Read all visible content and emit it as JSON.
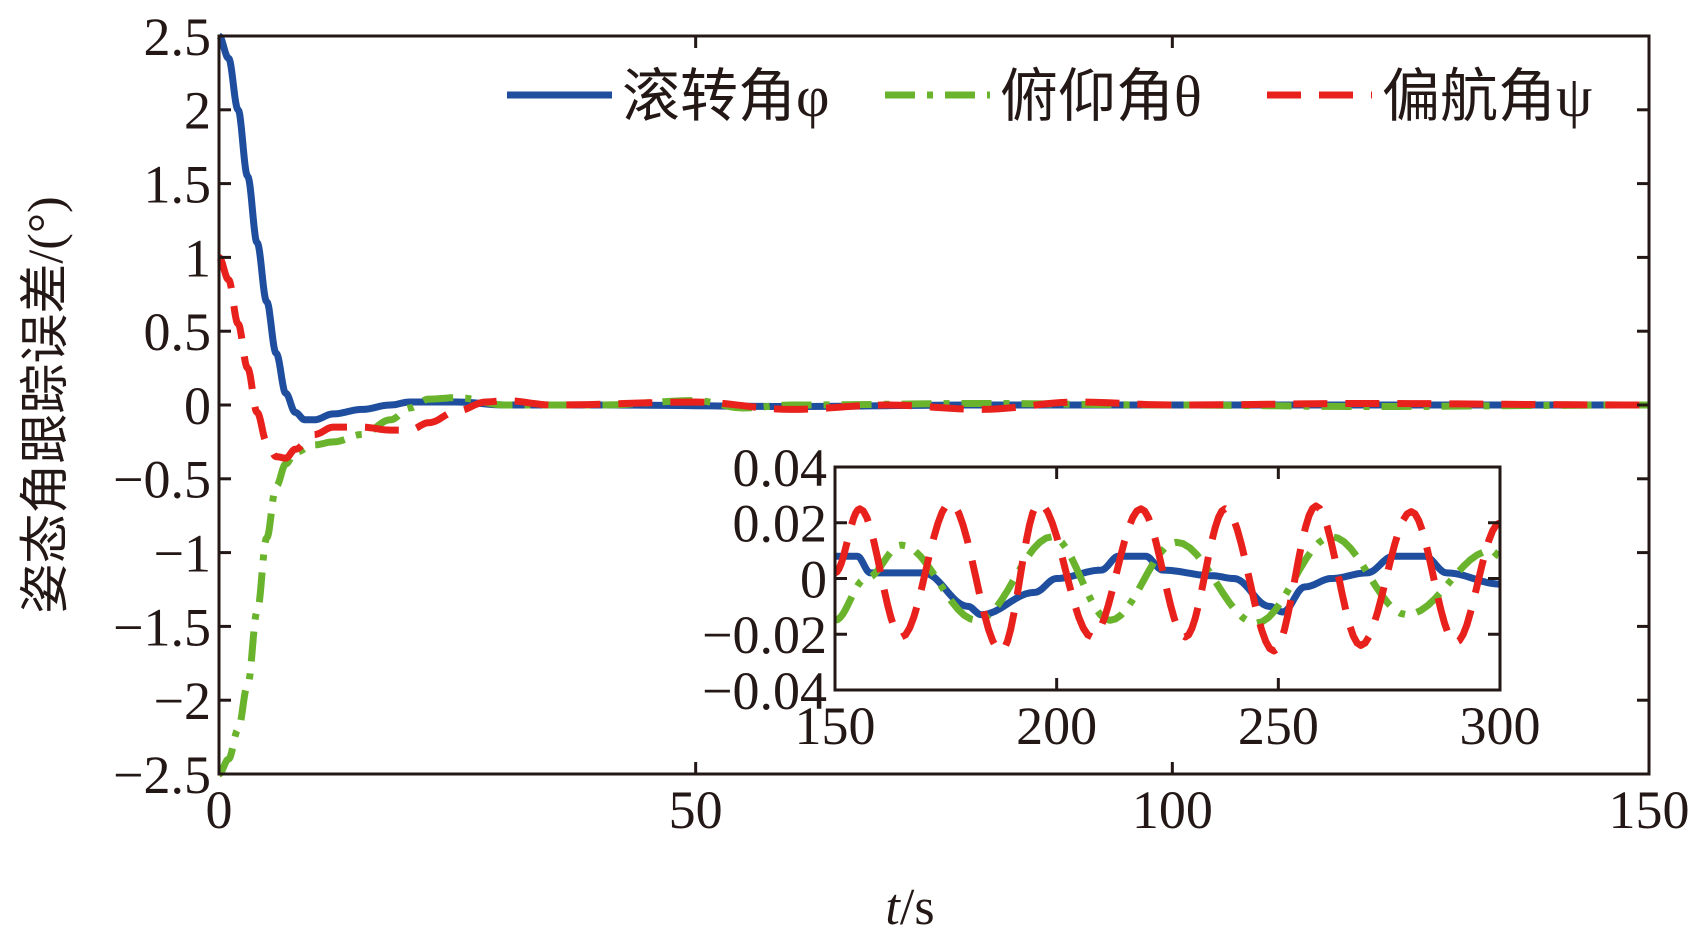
{
  "chart_data": [
    {
      "type": "line",
      "title": "",
      "xlabel_italic": "t",
      "xlabel_unit": "/s",
      "ylabel": "姿态角跟踪误差/(°)",
      "xlim": [
        0,
        150
      ],
      "ylim": [
        -2.5,
        2.5
      ],
      "xticks": [
        "0",
        "50",
        "100",
        "150"
      ],
      "xtick_values": [
        0,
        50,
        100,
        150
      ],
      "yticks": [
        "−2.5",
        "−2",
        "−1.5",
        "−1",
        "−0.5",
        "0",
        "0.5",
        "1",
        "1.5",
        "2",
        "2.5"
      ],
      "ytick_values": [
        -2.5,
        -2,
        -1.5,
        -1,
        -0.5,
        0,
        0.5,
        1,
        1.5,
        2,
        2.5
      ],
      "legend_placement": "top-right",
      "series": [
        {
          "name": "滚转角φ",
          "color": "#1f4e9e",
          "style": "solid",
          "x": [
            0,
            1,
            2,
            3,
            4,
            5,
            6,
            7,
            8,
            9,
            10,
            12,
            15,
            18,
            20,
            25,
            30,
            40,
            60,
            80,
            100,
            120,
            150
          ],
          "y": [
            2.5,
            2.35,
            2.0,
            1.55,
            1.1,
            0.7,
            0.35,
            0.08,
            -0.05,
            -0.1,
            -0.1,
            -0.06,
            -0.03,
            0.0,
            0.02,
            0.02,
            0.0,
            0.0,
            -0.01,
            0.0,
            0.0,
            0.0,
            0.0
          ]
        },
        {
          "name": "俯仰角θ",
          "color": "#6ab42d",
          "style": "dashdot",
          "x": [
            0,
            1,
            2,
            3,
            4,
            5,
            6,
            7,
            8,
            10,
            12,
            15,
            18,
            20,
            22,
            25,
            30,
            40,
            50,
            55,
            60,
            80,
            100,
            120,
            150
          ],
          "y": [
            -2.5,
            -2.4,
            -2.2,
            -1.9,
            -1.4,
            -0.9,
            -0.55,
            -0.4,
            -0.32,
            -0.27,
            -0.25,
            -0.2,
            -0.1,
            -0.02,
            0.04,
            0.05,
            0.0,
            0.0,
            0.03,
            -0.02,
            0.0,
            0.01,
            0.0,
            -0.01,
            0.0
          ]
        },
        {
          "name": "偏航角ψ",
          "color": "#e8211c",
          "style": "dashed",
          "x": [
            0,
            1,
            2,
            3,
            4,
            5,
            6,
            7,
            8,
            10,
            12,
            15,
            18,
            20,
            22,
            25,
            28,
            30,
            35,
            50,
            60,
            70,
            80,
            90,
            100,
            120,
            150
          ],
          "y": [
            1.0,
            0.85,
            0.55,
            0.25,
            -0.05,
            -0.25,
            -0.35,
            -0.36,
            -0.3,
            -0.2,
            -0.15,
            -0.15,
            -0.17,
            -0.17,
            -0.12,
            -0.04,
            0.02,
            0.03,
            0.0,
            0.02,
            -0.03,
            0.0,
            -0.03,
            0.02,
            0.0,
            0.01,
            0.0
          ]
        }
      ]
    },
    {
      "type": "line",
      "inset": true,
      "xlim": [
        150,
        300
      ],
      "ylim": [
        -0.04,
        0.04
      ],
      "xticks": [
        "150",
        "200",
        "250",
        "300"
      ],
      "xtick_values": [
        150,
        200,
        250,
        300
      ],
      "yticks": [
        "−0.04",
        "−0.02",
        "0",
        "0.02",
        "0.04"
      ],
      "ytick_values": [
        -0.04,
        -0.02,
        0,
        0.02,
        0.04
      ],
      "series": [
        {
          "name": "滚转角φ",
          "color": "#1f4e9e",
          "style": "solid",
          "x": [
            150,
            155,
            158,
            170,
            180,
            183,
            195,
            200,
            210,
            214,
            220,
            224,
            235,
            240,
            248,
            251,
            256,
            262,
            270,
            276,
            283,
            288,
            300
          ],
          "y": [
            0.008,
            0.008,
            0.002,
            0.002,
            -0.01,
            -0.013,
            -0.005,
            0.0,
            0.003,
            0.008,
            0.008,
            0.003,
            0.001,
            0.0,
            -0.01,
            -0.012,
            -0.003,
            0.0,
            0.002,
            0.008,
            0.008,
            0.002,
            -0.002
          ]
        },
        {
          "name": "俯仰角θ",
          "color": "#6ab42d",
          "style": "dashdot",
          "x": [
            150,
            157,
            165,
            182,
            199,
            212,
            227,
            245,
            262,
            279,
            298,
            300
          ],
          "y": [
            -0.015,
            0.0,
            0.012,
            -0.015,
            0.015,
            -0.015,
            0.013,
            -0.016,
            0.015,
            -0.013,
            0.01,
            0.008
          ]
        },
        {
          "name": "偏航角ψ",
          "color": "#e8211c",
          "style": "dashed",
          "x": [
            150,
            155.6,
            165,
            176,
            187.5,
            196,
            208,
            219,
            229,
            238,
            249,
            258.5,
            268.6,
            280,
            290,
            300
          ],
          "y": [
            0.002,
            0.025,
            -0.021,
            0.027,
            -0.026,
            0.027,
            -0.021,
            0.025,
            -0.021,
            0.025,
            -0.026,
            0.026,
            -0.024,
            0.024,
            -0.023,
            0.02
          ]
        }
      ]
    }
  ]
}
